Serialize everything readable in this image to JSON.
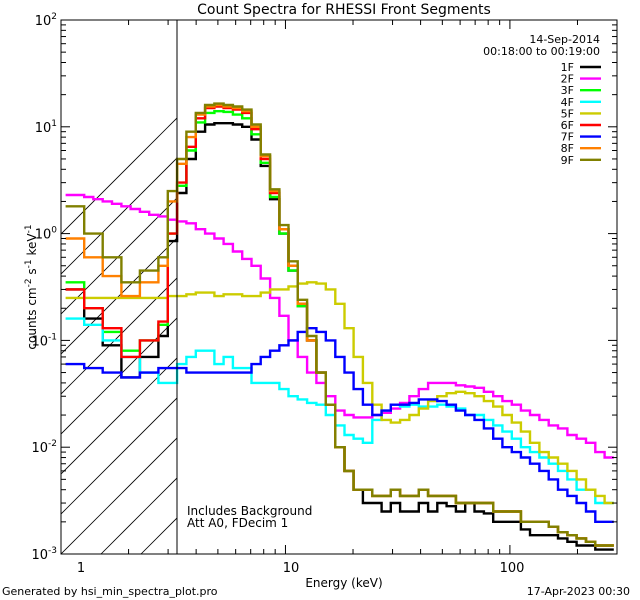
{
  "chart_data": {
    "type": "line",
    "title": "Count Spectra for RHESSI Front Segments",
    "xlabel": "Energy (keV)",
    "ylabel_base": "counts cm",
    "ylabel_exp1": "-2",
    "ylabel_mid": " s",
    "ylabel_exp2": "-1",
    "ylabel_end": " keV",
    "ylabel_exp3": "-1",
    "xscale": "log",
    "yscale": "log",
    "xlim": [
      1,
      300
    ],
    "ylim": [
      0.001,
      100
    ],
    "x_tick_labels": [
      "1",
      "10",
      "100"
    ],
    "y_tick_labels": [
      {
        "base": "10",
        "exp": "-3"
      },
      {
        "base": "10",
        "exp": "-2"
      },
      {
        "base": "10",
        "exp": "-1"
      },
      {
        "base": "10",
        "exp": "0"
      },
      {
        "base": "10",
        "exp": "1"
      },
      {
        "base": "10",
        "exp": "2"
      }
    ],
    "date": "14-Sep-2014",
    "time_range": "00:18:00 to 00:19:00",
    "annotations": [
      "Includes Background",
      "Att A0, FDecim 1"
    ],
    "hatched_region": {
      "x": [
        1,
        3
      ]
    },
    "legend_position": "top-right",
    "x": [
      1.1,
      1.21,
      1.33,
      1.46,
      1.61,
      1.77,
      1.95,
      2.14,
      2.36,
      2.59,
      2.85,
      3.14,
      3.45,
      3.8,
      4.18,
      4.6,
      5.06,
      5.56,
      6.12,
      6.73,
      7.4,
      8.14,
      8.96,
      9.85,
      10.8,
      11.9,
      13.1,
      14.4,
      15.9,
      17.5,
      19.2,
      21.1,
      23.2,
      25.6,
      28.1,
      30.9,
      34.0,
      37.4,
      41.2,
      45.3,
      49.8,
      54.8,
      60.3,
      66.3,
      73.0,
      80.3,
      88.3,
      97.1,
      107,
      117,
      129,
      142,
      156,
      172,
      189,
      208,
      229,
      252,
      277
    ],
    "series": [
      {
        "name": "1F",
        "color": "#000000",
        "values": [
          0.3,
          0.3,
          0.16,
          0.16,
          0.09,
          0.09,
          0.045,
          0.045,
          0.07,
          0.07,
          0.11,
          0.85,
          2.4,
          5.0,
          9.0,
          10.5,
          10.8,
          10.8,
          10.5,
          10.0,
          7.6,
          4.3,
          2.1,
          1.0,
          0.45,
          0.21,
          0.1,
          0.05,
          0.025,
          0.01,
          0.006,
          0.004,
          0.003,
          0.003,
          0.0025,
          0.003,
          0.0025,
          0.0025,
          0.003,
          0.0025,
          0.003,
          0.0028,
          0.0025,
          0.003,
          0.0025,
          0.0024,
          0.002,
          0.002,
          0.002,
          0.0017,
          0.0015,
          0.0015,
          0.0015,
          0.0014,
          0.0013,
          0.0012,
          0.0012,
          0.0011,
          0.0011
        ]
      },
      {
        "name": "2F",
        "color": "#ff00ff",
        "values": [
          2.3,
          2.3,
          2.2,
          2.1,
          2.0,
          1.9,
          1.8,
          1.7,
          1.6,
          1.5,
          1.45,
          1.35,
          1.3,
          1.25,
          1.1,
          1.0,
          0.9,
          0.8,
          0.68,
          0.58,
          0.5,
          0.38,
          0.25,
          0.17,
          0.1,
          0.07,
          0.05,
          0.04,
          0.03,
          0.022,
          0.02,
          0.019,
          0.019,
          0.02,
          0.021,
          0.023,
          0.026,
          0.03,
          0.035,
          0.04,
          0.04,
          0.04,
          0.038,
          0.037,
          0.036,
          0.033,
          0.03,
          0.027,
          0.025,
          0.022,
          0.02,
          0.018,
          0.016,
          0.015,
          0.013,
          0.012,
          0.011,
          0.009,
          0.008
        ]
      },
      {
        "name": "3F",
        "color": "#00ff00",
        "values": [
          0.35,
          0.35,
          0.2,
          0.2,
          0.12,
          0.12,
          0.08,
          0.08,
          0.1,
          0.1,
          0.14,
          1.0,
          2.8,
          6.0,
          11.0,
          13.5,
          14.0,
          13.8,
          13.0,
          12.0,
          8.5,
          4.6,
          2.2,
          1.0,
          0.45,
          0.21,
          0.1,
          0.05,
          0.025,
          0.01,
          0.006,
          0.004,
          0.004,
          0.0035,
          0.0035,
          0.004,
          0.0035,
          0.0035,
          0.004,
          0.0035,
          0.0035,
          0.0035,
          0.003,
          0.003,
          0.003,
          0.003,
          0.0025,
          0.0025,
          0.0025,
          0.002,
          0.002,
          0.002,
          0.0018,
          0.0016,
          0.0015,
          0.0014,
          0.0013,
          0.0012,
          0.0012
        ]
      },
      {
        "name": "4F",
        "color": "#00ffff",
        "values": [
          0.16,
          0.16,
          0.14,
          0.14,
          0.1,
          0.1,
          0.07,
          0.07,
          0.05,
          0.05,
          0.04,
          0.04,
          0.06,
          0.07,
          0.08,
          0.08,
          0.06,
          0.07,
          0.055,
          0.055,
          0.04,
          0.04,
          0.04,
          0.035,
          0.03,
          0.028,
          0.026,
          0.025,
          0.02,
          0.016,
          0.013,
          0.012,
          0.011,
          0.018,
          0.022,
          0.025,
          0.024,
          0.025,
          0.024,
          0.024,
          0.025,
          0.024,
          0.023,
          0.02,
          0.02,
          0.018,
          0.016,
          0.014,
          0.012,
          0.01,
          0.009,
          0.008,
          0.007,
          0.006,
          0.005,
          0.004,
          0.004,
          0.003,
          0.003
        ]
      },
      {
        "name": "5F",
        "color": "#cccc00",
        "values": [
          0.25,
          0.25,
          0.25,
          0.25,
          0.25,
          0.25,
          0.25,
          0.25,
          0.25,
          0.25,
          0.25,
          0.26,
          0.26,
          0.27,
          0.28,
          0.28,
          0.26,
          0.27,
          0.27,
          0.26,
          0.26,
          0.28,
          0.3,
          0.3,
          0.32,
          0.34,
          0.35,
          0.34,
          0.3,
          0.22,
          0.13,
          0.07,
          0.04,
          0.025,
          0.018,
          0.017,
          0.018,
          0.02,
          0.023,
          0.027,
          0.03,
          0.032,
          0.033,
          0.032,
          0.03,
          0.027,
          0.024,
          0.02,
          0.017,
          0.014,
          0.011,
          0.009,
          0.008,
          0.007,
          0.006,
          0.005,
          0.004,
          0.0035,
          0.003
        ]
      },
      {
        "name": "6F",
        "color": "#ff0000",
        "values": [
          0.3,
          0.3,
          0.2,
          0.2,
          0.13,
          0.13,
          0.07,
          0.07,
          0.1,
          0.1,
          0.15,
          1.0,
          3.0,
          6.5,
          12.0,
          15.0,
          15.5,
          15.0,
          14.5,
          13.5,
          9.5,
          5.0,
          2.4,
          1.1,
          0.5,
          0.22,
          0.1,
          0.05,
          0.025,
          0.01,
          0.006,
          0.004,
          0.004,
          0.0035,
          0.0035,
          0.004,
          0.0035,
          0.0035,
          0.004,
          0.0035,
          0.0035,
          0.0035,
          0.003,
          0.003,
          0.003,
          0.003,
          0.0025,
          0.0025,
          0.0025,
          0.002,
          0.002,
          0.002,
          0.0018,
          0.0016,
          0.0015,
          0.0014,
          0.0013,
          0.0012,
          0.0012
        ]
      },
      {
        "name": "7F",
        "color": "#0000ff",
        "values": [
          0.06,
          0.06,
          0.055,
          0.055,
          0.05,
          0.05,
          0.045,
          0.045,
          0.05,
          0.05,
          0.055,
          0.055,
          0.055,
          0.05,
          0.05,
          0.05,
          0.05,
          0.05,
          0.05,
          0.05,
          0.06,
          0.07,
          0.08,
          0.09,
          0.1,
          0.12,
          0.13,
          0.12,
          0.1,
          0.07,
          0.05,
          0.035,
          0.025,
          0.02,
          0.022,
          0.025,
          0.025,
          0.026,
          0.028,
          0.028,
          0.027,
          0.025,
          0.022,
          0.02,
          0.018,
          0.015,
          0.012,
          0.01,
          0.009,
          0.008,
          0.007,
          0.006,
          0.005,
          0.004,
          0.0035,
          0.003,
          0.0025,
          0.002,
          0.002
        ]
      },
      {
        "name": "8F",
        "color": "#ff8000",
        "values": [
          0.9,
          0.9,
          0.6,
          0.6,
          0.4,
          0.4,
          0.26,
          0.26,
          0.35,
          0.35,
          0.5,
          2.0,
          4.5,
          8.0,
          13.0,
          15.5,
          16.0,
          15.5,
          15.0,
          14.0,
          10.0,
          5.3,
          2.5,
          1.1,
          0.5,
          0.22,
          0.1,
          0.05,
          0.025,
          0.01,
          0.006,
          0.004,
          0.004,
          0.0035,
          0.0035,
          0.004,
          0.0035,
          0.0035,
          0.004,
          0.0035,
          0.0035,
          0.0035,
          0.003,
          0.003,
          0.003,
          0.003,
          0.0025,
          0.0025,
          0.0025,
          0.002,
          0.002,
          0.002,
          0.0018,
          0.0016,
          0.0015,
          0.0014,
          0.0013,
          0.0012,
          0.0012
        ]
      },
      {
        "name": "9F",
        "color": "#808000",
        "values": [
          1.8,
          1.8,
          1.0,
          1.0,
          0.6,
          0.6,
          0.35,
          0.35,
          0.45,
          0.45,
          0.6,
          2.5,
          5.0,
          9.0,
          13.5,
          16.0,
          16.5,
          16.0,
          15.5,
          14.5,
          10.5,
          5.5,
          2.6,
          1.2,
          0.55,
          0.24,
          0.11,
          0.05,
          0.025,
          0.01,
          0.006,
          0.004,
          0.004,
          0.0035,
          0.0035,
          0.004,
          0.0035,
          0.0035,
          0.004,
          0.0035,
          0.0035,
          0.0035,
          0.003,
          0.003,
          0.003,
          0.003,
          0.0025,
          0.0025,
          0.0025,
          0.002,
          0.002,
          0.002,
          0.0018,
          0.0016,
          0.0015,
          0.0014,
          0.0013,
          0.0012,
          0.0012
        ]
      }
    ]
  },
  "footer": {
    "generated_by": "Generated by hsi_min_spectra_plot.pro",
    "timestamp": "17-Apr-2023 00:30"
  }
}
